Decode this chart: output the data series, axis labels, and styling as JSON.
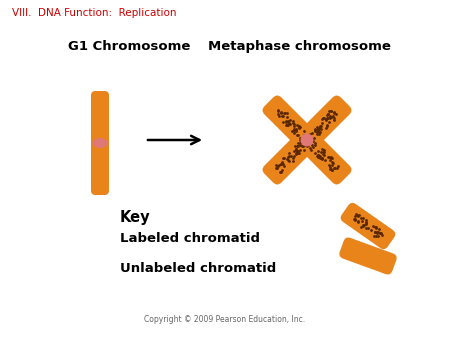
{
  "title": "VIII.  DNA Function:  Replication",
  "title_color": "#cc0000",
  "title_fontsize": 7.5,
  "bg_color": "#ffffff",
  "g1_label": "G1 Chromosome",
  "meta_label": "Metaphase chromosome",
  "key_label": "Key",
  "labeled_chromatid": "Labeled chromatid",
  "unlabeled_chromatid": "Unlabeled chromatid",
  "copyright": "Copyright © 2009 Pearson Education, Inc.",
  "orange_color": "#E8841A",
  "centromere_color": "#E07878",
  "dot_color": "#5A2800",
  "label_fontsize": 9.5,
  "key_fontsize": 9.5
}
